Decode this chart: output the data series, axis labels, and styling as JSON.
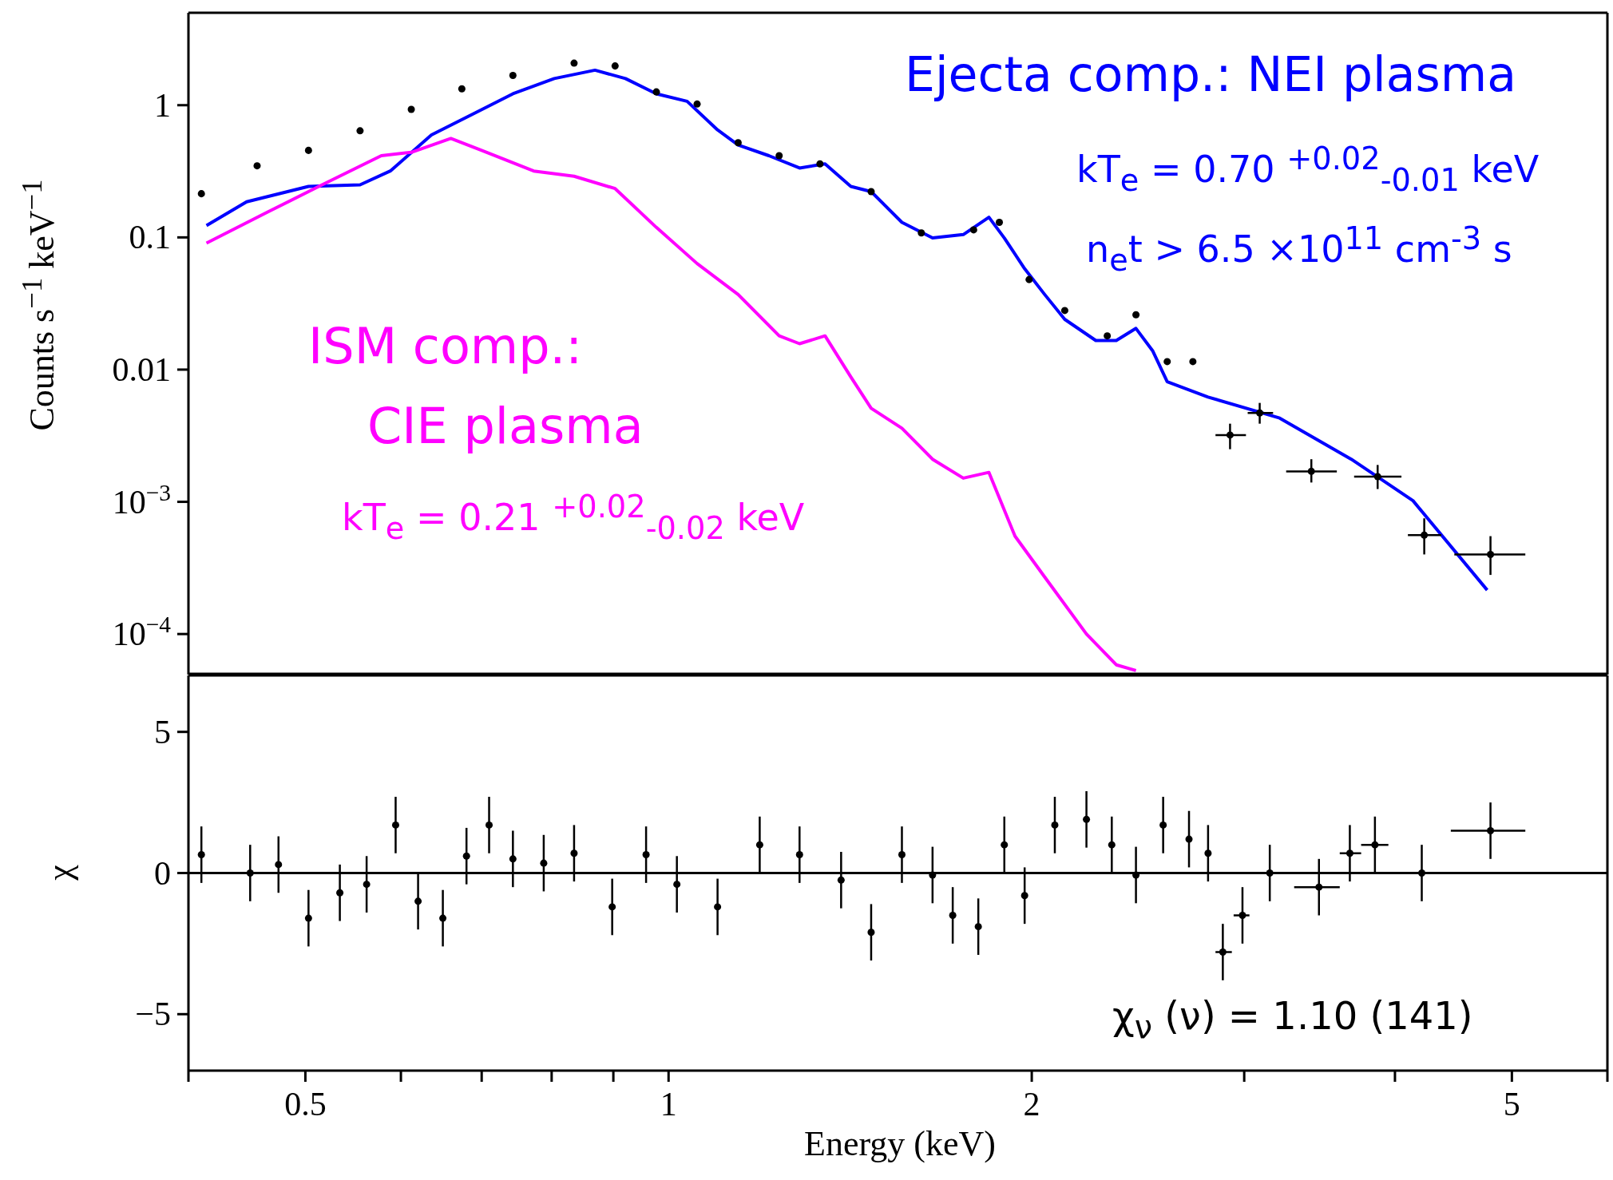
{
  "chart_data": [
    {
      "type": "scatter",
      "ylabel": "Counts s$^{−1}$ keV$^{−1}$",
      "log": "xy",
      "xlim": [
        0.4,
        6
      ],
      "ylim": [
        5e-05,
        5
      ],
      "xticks": [
        {
          "value": 0.4,
          "label": null
        },
        0.5,
        {
          "value": 0.6,
          "label": null
        },
        {
          "value": 0.7,
          "label": null
        },
        {
          "value": 0.8,
          "label": null
        },
        {
          "value": 0.9,
          "label": null
        },
        1,
        2,
        {
          "value": 3,
          "label": null
        },
        {
          "value": 4,
          "label": null
        },
        5,
        {
          "value": 6,
          "label": null
        }
      ],
      "yticks": [
        {
          "value": 0.0001,
          "label": "10$^{−4}$"
        },
        {
          "value": 0.001,
          "label": "10$^{−3}$"
        },
        0.01,
        0.1,
        1
      ],
      "tick_labels": "y",
      "line_style": "solid",
      "annotations": [
        "Ejecta comp.: NEI plasma",
        "kT$_{e}$ = 0.70 $^{+0.02}$$_{-0.01}$ keV",
        "n$_{e}$t > 6.5 ×10$^{11}$ cm$^{-3}$ s",
        "ISM comp.:",
        "CIE plasma",
        "kT$_{e}$ = 0.21 $^{+0.02}$$_{-0.02}$ keV"
      ],
      "series": [
        {
          "type": "line",
          "color": "#0000ff",
          "x": [
            0.414,
            0.447,
            0.503,
            0.555,
            0.588,
            0.636,
            0.687,
            0.743,
            0.804,
            0.869,
            0.921,
            0.977,
            1.036,
            1.098,
            1.142,
            1.211,
            1.284,
            1.348,
            1.416,
            1.472,
            1.561,
            1.655,
            1.755,
            1.843,
            1.898,
            1.973,
            2.05,
            2.13,
            2.26,
            2.35,
            2.44,
            2.52,
            2.59,
            2.8,
            3.21,
            3.68,
            4.14,
            4.77
          ],
          "values": [
            0.123,
            0.186,
            0.243,
            0.25,
            0.318,
            0.595,
            0.85,
            1.22,
            1.59,
            1.84,
            1.59,
            1.22,
            1.07,
            0.65,
            0.5,
            0.415,
            0.335,
            0.36,
            0.243,
            0.222,
            0.13,
            0.099,
            0.105,
            0.142,
            0.099,
            0.058,
            0.037,
            0.024,
            0.0166,
            0.0166,
            0.0205,
            0.0138,
            0.0081,
            0.0062,
            0.0043,
            0.0021,
            0.00102,
            0.000215
          ]
        },
        {
          "type": "line",
          "color": "#ff00ff",
          "x": [
            0.414,
            0.465,
            0.513,
            0.578,
            0.612,
            0.66,
            0.7,
            0.773,
            0.835,
            0.903,
            0.977,
            1.056,
            1.142,
            1.235,
            1.284,
            1.348,
            1.416,
            1.472,
            1.561,
            1.655,
            1.755,
            1.843,
            1.937,
            2.05,
            2.22,
            2.35,
            2.44
          ],
          "values": [
            0.0906,
            0.155,
            0.243,
            0.415,
            0.44,
            0.56,
            0.455,
            0.318,
            0.29,
            0.234,
            0.119,
            0.0634,
            0.037,
            0.018,
            0.0157,
            0.018,
            0.0088,
            0.0051,
            0.0036,
            0.0021,
            0.00151,
            0.00167,
            0.00055,
            0.00027,
            0.0001,
            5.85e-05,
            5.3e-05
          ]
        },
        {
          "color": "#000000",
          "x": [
            0.41,
            0.456,
            0.503,
            0.555,
            0.612,
            0.674,
            0.743,
            0.835,
            0.903,
            0.977,
            1.056,
            1.142,
            1.235,
            1.335,
            1.472,
            1.62,
            1.79,
            1.88,
            1.99,
            2.13,
            2.31,
            2.44,
            2.59,
            2.72,
            2.92,
            3.09,
            3.41,
            3.87,
            4.23,
            4.8
          ],
          "values": [
            0.214,
            0.348,
            0.455,
            0.64,
            0.93,
            1.33,
            1.68,
            2.08,
            1.98,
            1.26,
            1.02,
            0.52,
            0.415,
            0.36,
            0.222,
            0.108,
            0.114,
            0.13,
            0.048,
            0.028,
            0.018,
            0.026,
            0.0115,
            0.0115,
            0.0032,
            0.0047,
            0.0017,
            0.00155,
            0.00056,
            0.0004
          ],
          "errors": [
            null,
            null,
            null,
            null,
            null,
            null,
            null,
            null,
            null,
            null,
            null,
            null,
            null,
            null,
            null,
            null,
            null,
            null,
            null,
            null,
            null,
            null,
            null,
            null,
            [
              0.0025,
              0.0039
            ],
            [
              0.0039,
              0.0056
            ],
            [
              0.0014,
              0.0021
            ],
            [
              0.00125,
              0.0019
            ],
            [
              0.0004,
              0.00075
            ],
            [
              0.00028,
              0.00055
            ]
          ],
          "xerrors": [
            null,
            null,
            null,
            null,
            null,
            null,
            null,
            null,
            null,
            null,
            null,
            null,
            null,
            null,
            null,
            null,
            null,
            null,
            null,
            null,
            null,
            null,
            null,
            null,
            [
              2.84,
              3.01
            ],
            [
              3.02,
              3.17
            ],
            [
              3.25,
              3.58
            ],
            [
              3.7,
              4.05
            ],
            [
              4.1,
              4.37
            ],
            [
              4.48,
              5.13
            ]
          ]
        }
      ]
    },
    {
      "type": "scatter",
      "xlabel": "Energy (keV)",
      "ylabel": "χ",
      "log": "x",
      "xlim": [
        0.4,
        6
      ],
      "ylim": [
        -7,
        7
      ],
      "xticks": [
        {
          "value": 0.4,
          "label": null
        },
        0.5,
        {
          "value": 0.6,
          "label": null
        },
        {
          "value": 0.7,
          "label": null
        },
        {
          "value": 0.8,
          "label": null
        },
        {
          "value": 0.9,
          "label": null
        },
        1,
        2,
        {
          "value": 3,
          "label": null
        },
        {
          "value": 4,
          "label": null
        },
        5,
        {
          "value": 6,
          "label": null
        }
      ],
      "yticks": [
        {
          "value": -5,
          "label": "−5"
        },
        0,
        5
      ],
      "ref_lines": [
        {
          "axis": "y",
          "value": 0,
          "color": "#000000"
        }
      ],
      "annotations": [
        "χ$_{ν}$ (ν) = 1.10 (141)"
      ],
      "series": [
        {
          "color": "#000000",
          "x": [
            0.41,
            0.45,
            0.475,
            0.503,
            0.534,
            0.562,
            0.594,
            0.62,
            0.65,
            0.68,
            0.71,
            0.743,
            0.788,
            0.835,
            0.898,
            0.958,
            1.016,
            1.098,
            1.19,
            1.284,
            1.39,
            1.472,
            1.561,
            1.655,
            1.72,
            1.806,
            1.898,
            1.973,
            2.09,
            2.22,
            2.33,
            2.44,
            2.57,
            2.7,
            2.8,
            2.88,
            2.99,
            3.15,
            3.46,
            3.67,
            3.85,
            4.21,
            4.8
          ],
          "values": [
            0.65,
            0,
            0.3,
            -1.6,
            -0.7,
            -0.4,
            1.7,
            -1,
            -1.6,
            0.6,
            1.7,
            0.5,
            0.35,
            0.7,
            -1.2,
            0.65,
            -0.4,
            -1.2,
            1,
            0.65,
            -0.25,
            -2.1,
            0.65,
            -0.07,
            -1.5,
            -1.9,
            1,
            -0.8,
            1.7,
            1.9,
            1,
            -0.07,
            1.7,
            1.2,
            0.7,
            -2.8,
            -1.5,
            0,
            -0.5,
            0.7,
            1,
            0,
            1.5
          ],
          "errors": [
            1,
            1,
            1,
            1,
            1,
            1,
            1,
            1,
            1,
            1,
            1,
            1,
            1,
            1,
            1,
            1,
            1,
            1,
            1,
            1,
            1,
            1,
            1,
            1,
            1,
            1,
            1,
            1,
            1,
            1,
            1,
            1,
            1,
            1,
            1,
            1,
            1,
            1,
            1,
            1,
            1,
            1,
            1
          ],
          "xerrors": [
            null,
            null,
            null,
            null,
            null,
            null,
            null,
            null,
            null,
            null,
            null,
            null,
            null,
            null,
            null,
            null,
            null,
            null,
            null,
            null,
            null,
            null,
            null,
            null,
            null,
            null,
            null,
            null,
            null,
            null,
            null,
            null,
            null,
            null,
            null,
            [
              2.84,
              2.93
            ],
            [
              2.94,
              3.03
            ],
            [
              3.05,
              3.25
            ],
            [
              3.3,
              3.6
            ],
            [
              3.6,
              3.75
            ],
            [
              3.75,
              3.95
            ],
            [
              3.9,
              4.5
            ],
            [
              4.45,
              5.13
            ]
          ]
        }
      ]
    }
  ]
}
